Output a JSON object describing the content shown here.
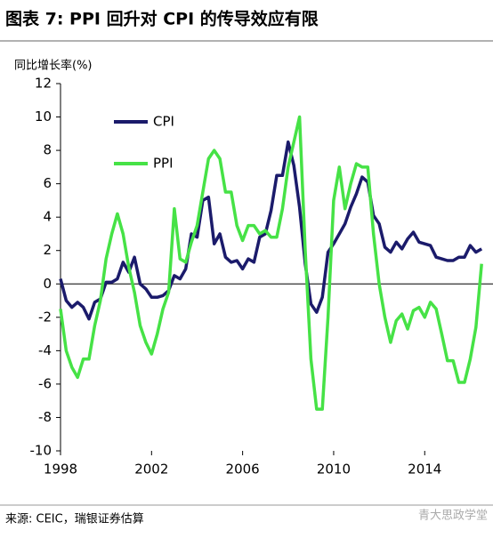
{
  "chart_data": {
    "type": "line",
    "title": "图表 7: PPI 回升对 CPI 的传导效应有限",
    "y_label": "同比增长率(%)",
    "source": "来源: CEIC，瑞银证券估算",
    "watermark": "青大思政学堂",
    "x": [
      1998,
      1998.25,
      1998.5,
      1998.75,
      1999,
      1999.25,
      1999.5,
      1999.75,
      2000,
      2000.25,
      2000.5,
      2000.75,
      2001,
      2001.25,
      2001.5,
      2001.75,
      2002,
      2002.25,
      2002.5,
      2002.75,
      2003,
      2003.25,
      2003.5,
      2003.75,
      2004,
      2004.25,
      2004.5,
      2004.75,
      2005,
      2005.25,
      2005.5,
      2005.75,
      2006,
      2006.25,
      2006.5,
      2006.75,
      2007,
      2007.25,
      2007.5,
      2007.75,
      2008,
      2008.25,
      2008.5,
      2008.75,
      2009,
      2009.25,
      2009.5,
      2009.75,
      2010,
      2010.25,
      2010.5,
      2010.75,
      2011,
      2011.25,
      2011.5,
      2011.75,
      2012,
      2012.25,
      2012.5,
      2012.75,
      2013,
      2013.25,
      2013.5,
      2013.75,
      2014,
      2014.25,
      2014.5,
      2014.75,
      2015,
      2015.25,
      2015.5,
      2015.75,
      2016,
      2016.25,
      2016.5
    ],
    "series": [
      {
        "name": "CPI",
        "color": "#1b1b6b",
        "values": [
          0.3,
          -1.0,
          -1.4,
          -1.1,
          -1.4,
          -2.1,
          -1.1,
          -0.9,
          0.1,
          0.1,
          0.3,
          1.3,
          0.7,
          1.6,
          0.0,
          -0.3,
          -0.8,
          -0.8,
          -0.7,
          -0.4,
          0.5,
          0.3,
          0.9,
          3.0,
          2.8,
          5.0,
          5.2,
          2.4,
          3.0,
          1.6,
          1.3,
          1.4,
          0.9,
          1.5,
          1.3,
          2.8,
          3.0,
          4.4,
          6.5,
          6.5,
          8.5,
          7.1,
          4.6,
          1.2,
          -1.2,
          -1.7,
          -0.8,
          1.9,
          2.4,
          3.0,
          3.6,
          4.6,
          5.4,
          6.4,
          6.1,
          4.1,
          3.6,
          2.2,
          1.9,
          2.5,
          2.1,
          2.7,
          3.1,
          2.5,
          2.4,
          2.3,
          1.6,
          1.5,
          1.4,
          1.4,
          1.6,
          1.6,
          2.3,
          1.9,
          2.1
        ]
      },
      {
        "name": "PPI",
        "color": "#46e246",
        "values": [
          -1.5,
          -4.0,
          -5.0,
          -5.6,
          -4.5,
          -4.5,
          -2.5,
          -1.0,
          1.5,
          3.0,
          4.2,
          3.0,
          1.0,
          -0.5,
          -2.5,
          -3.5,
          -4.2,
          -3.0,
          -1.5,
          -0.5,
          4.5,
          1.5,
          1.3,
          2.5,
          3.5,
          5.5,
          7.5,
          8.0,
          7.5,
          5.5,
          5.5,
          3.5,
          2.6,
          3.5,
          3.5,
          3.0,
          3.2,
          2.8,
          2.8,
          4.5,
          7.0,
          8.5,
          10.0,
          2.0,
          -4.5,
          -7.5,
          -7.5,
          -2.0,
          5.0,
          7.0,
          4.5,
          6.0,
          7.2,
          7.0,
          7.0,
          3.0,
          0.0,
          -2.0,
          -3.5,
          -2.2,
          -1.8,
          -2.7,
          -1.6,
          -1.4,
          -2.0,
          -1.1,
          -1.5,
          -3.0,
          -4.6,
          -4.6,
          -5.9,
          -5.9,
          -4.5,
          -2.6,
          1.2
        ]
      }
    ],
    "xlim": [
      1998,
      2017
    ],
    "xticks": [
      1998,
      2002,
      2006,
      2010,
      2014
    ],
    "ylim": [
      -10,
      12
    ],
    "yticks": [
      -10,
      -8,
      -6,
      -4,
      -2,
      0,
      2,
      4,
      6,
      8,
      10,
      12
    ],
    "grid": false,
    "legend": "upper left"
  }
}
